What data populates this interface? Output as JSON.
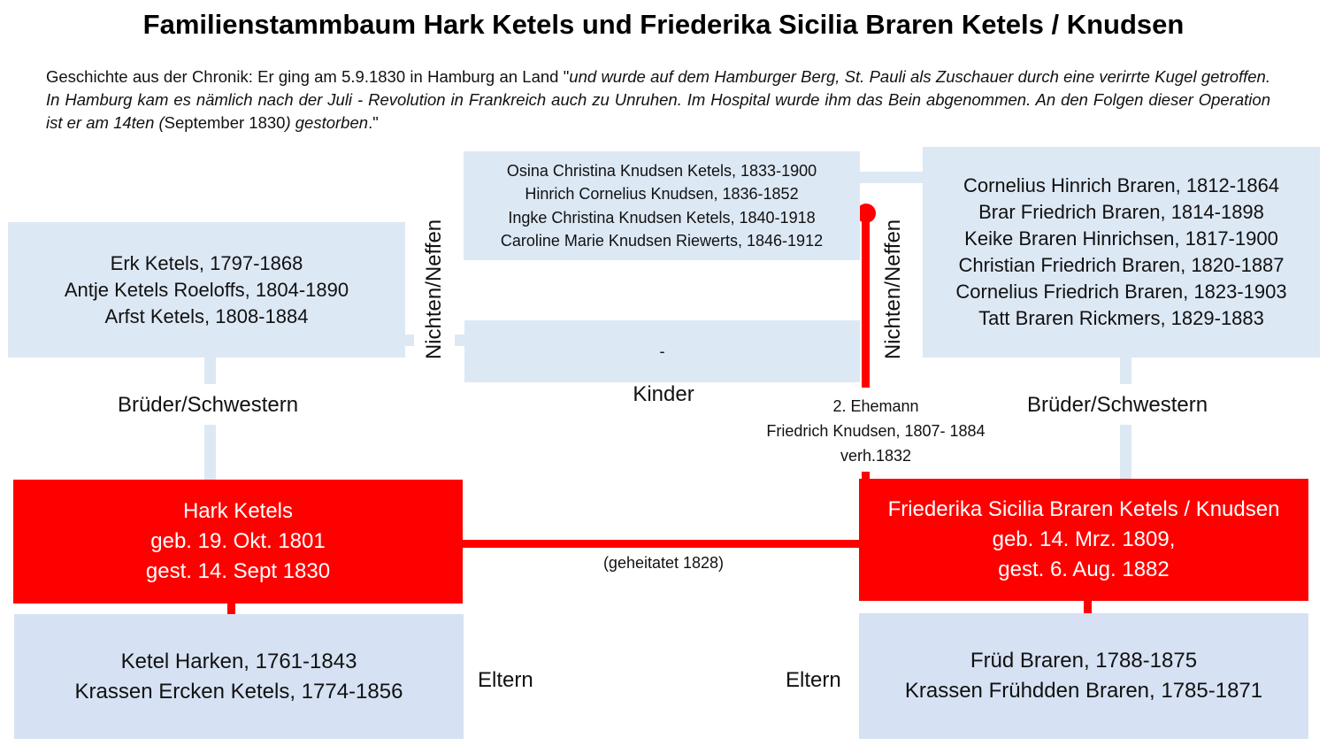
{
  "title": "Familienstammbaum Hark Ketels und Friederika Sicilia Braren Ketels / Knudsen",
  "story": {
    "part1": "Geschichte aus der Chronik: Er ging am 5.9.1830 in Hamburg an Land \"",
    "part2": "und wurde auf dem Hamburger Berg, St. Pauli als Zuschauer durch eine verirrte Kugel getroffen. In Hamburg kam es nämlich nach der Juli - Revolution in Frankreich auch zu Unruhen. Im Hospital wurde ihm das Bein abgenommen. An den Folgen dieser Operation ist er am 14ten (",
    "part3": "September 1830",
    "part4": ") gestorben",
    "part5": ".\""
  },
  "siblings_left": [
    "Erk Ketels, 1797-1868",
    "Antje Ketels Roeloffs, 1804-1890",
    "Arfst Ketels, 1808-1884"
  ],
  "siblings_right": [
    "Cornelius Hinrich Braren, 1812-1864",
    "Brar Friedrich Braren, 1814-1898",
    "Keike Braren Hinrichsen, 1817-1900",
    "Christian Friedrich Braren, 1820-1887",
    "Cornelius Friedrich Braren, 1823-1903",
    "Tatt Braren Rickmers, 1829-1883"
  ],
  "knudsen_children": [
    "Osina Christina Knudsen Ketels, 1833-1900",
    "Hinrich Cornelius Knudsen, 1836-1852",
    "Ingke Christina Knudsen Ketels, 1840-1918",
    "Caroline Marie Knudsen Riewerts, 1846-1912"
  ],
  "ketels_children": "-",
  "labels": {
    "nichten_left": "Nichten/Neffen",
    "nichten_right": "Nichten/Neffen",
    "kinder": "Kinder",
    "brueder_left": "Brüder/Schwestern",
    "brueder_right": "Brüder/Schwestern",
    "eltern_left": "Eltern",
    "eltern_right": "Eltern",
    "married": "(geheitatet 1828)"
  },
  "second_husband": [
    "2. Ehemann",
    "Friedrich Knudsen, 1807- 1884",
    "verh.1832"
  ],
  "person_left": [
    "Hark Ketels",
    "geb. 19. Okt. 1801",
    "gest. 14. Sept 1830"
  ],
  "person_right": [
    "Friederika Sicilia Braren Ketels / Knudsen",
    "geb. 14. Mrz. 1809,",
    "gest. 6. Aug. 1882"
  ],
  "parents_left": [
    "Ketel Harken, 1761-1843",
    "Krassen Ercken Ketels, 1774-1856"
  ],
  "parents_right": [
    "Früd Braren, 1788-1875",
    "Krassen Frühdden Braren, 1785-1871"
  ],
  "colors": {
    "red": "#ff0000",
    "light_blue": "#dde8f5",
    "parents_blue": "#d6e2f3"
  }
}
